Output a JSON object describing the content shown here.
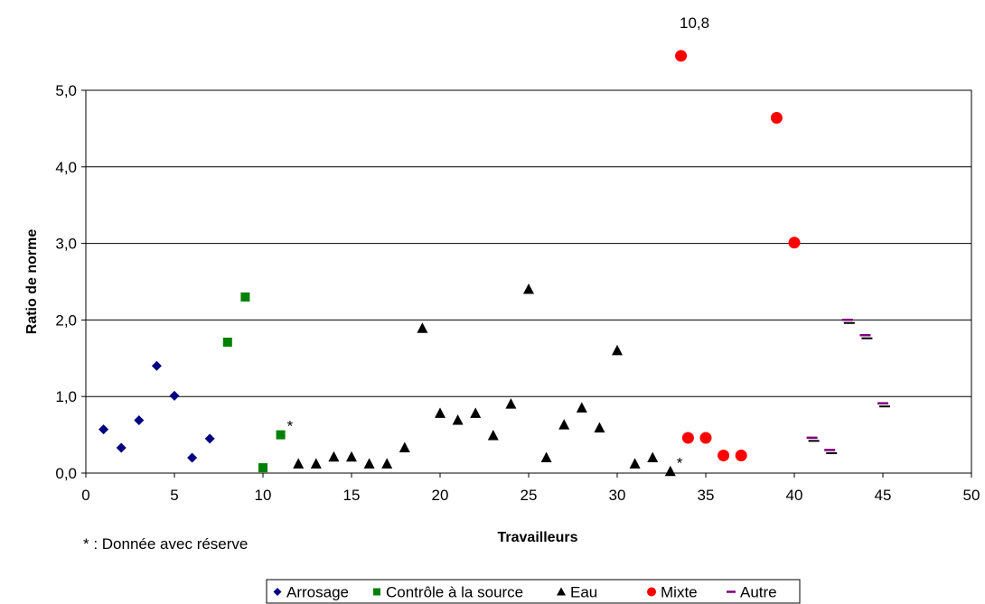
{
  "chart_data": {
    "type": "scatter",
    "title": "",
    "xlabel": "Travailleurs",
    "ylabel": "Ratio de norme",
    "xlim": [
      0,
      50
    ],
    "ylim": [
      0,
      5
    ],
    "x_ticks": [
      "0",
      "5",
      "10",
      "15",
      "20",
      "25",
      "30",
      "35",
      "40",
      "45",
      "50"
    ],
    "y_ticks": [
      "0,0",
      "1,0",
      "2,0",
      "3,0",
      "4,0",
      "5,0"
    ],
    "grid": "horizontal",
    "legend_position": "bottom",
    "series": [
      {
        "name": "Arrosage",
        "marker": "diamond",
        "color": "#000080",
        "points": [
          [
            1,
            0.57
          ],
          [
            2,
            0.33
          ],
          [
            3,
            0.69
          ],
          [
            4,
            1.4
          ],
          [
            5,
            1.01
          ],
          [
            6,
            0.2
          ],
          [
            7,
            0.45
          ]
        ]
      },
      {
        "name": "Contrôle à la source",
        "marker": "square",
        "color": "#008000",
        "points": [
          [
            8,
            1.71
          ],
          [
            9,
            2.3
          ],
          [
            10,
            0.07
          ],
          [
            11,
            0.5
          ]
        ]
      },
      {
        "name": "Eau",
        "marker": "triangle",
        "color": "#000000",
        "points": [
          [
            12,
            0.12
          ],
          [
            13,
            0.12
          ],
          [
            14,
            0.21
          ],
          [
            15,
            0.21
          ],
          [
            16,
            0.12
          ],
          [
            17,
            0.12
          ],
          [
            18,
            0.33
          ],
          [
            19,
            1.89
          ],
          [
            20,
            0.78
          ],
          [
            21,
            0.69
          ],
          [
            22,
            0.78
          ],
          [
            23,
            0.49
          ],
          [
            24,
            0.9
          ],
          [
            25,
            2.4
          ],
          [
            26,
            0.2
          ],
          [
            27,
            0.63
          ],
          [
            28,
            0.85
          ],
          [
            29,
            0.59
          ],
          [
            30,
            1.6
          ],
          [
            31,
            0.12
          ],
          [
            32,
            0.2
          ],
          [
            33,
            0.02
          ]
        ]
      },
      {
        "name": "Mixte",
        "marker": "circle",
        "color": "#ff0000",
        "points": [
          [
            33.6,
            5.45
          ],
          [
            34,
            0.46
          ],
          [
            35,
            0.46
          ],
          [
            36,
            0.23
          ],
          [
            37,
            0.23
          ],
          [
            39,
            4.64
          ],
          [
            40,
            3.01
          ]
        ]
      },
      {
        "name": "Autre",
        "marker": "dash",
        "color": "#800080",
        "points": [
          [
            41,
            0.45
          ],
          [
            42,
            0.29
          ],
          [
            43,
            1.99
          ],
          [
            44,
            1.79
          ],
          [
            45,
            0.9
          ]
        ]
      }
    ],
    "annotations": [
      {
        "text": "10,8",
        "x": 33.6,
        "y": 5.45
      },
      {
        "text": "*",
        "x": 11,
        "y": 0.5
      },
      {
        "text": "*",
        "x": 33,
        "y": 0.02
      }
    ],
    "footnote": "* : Donnée avec réserve"
  }
}
